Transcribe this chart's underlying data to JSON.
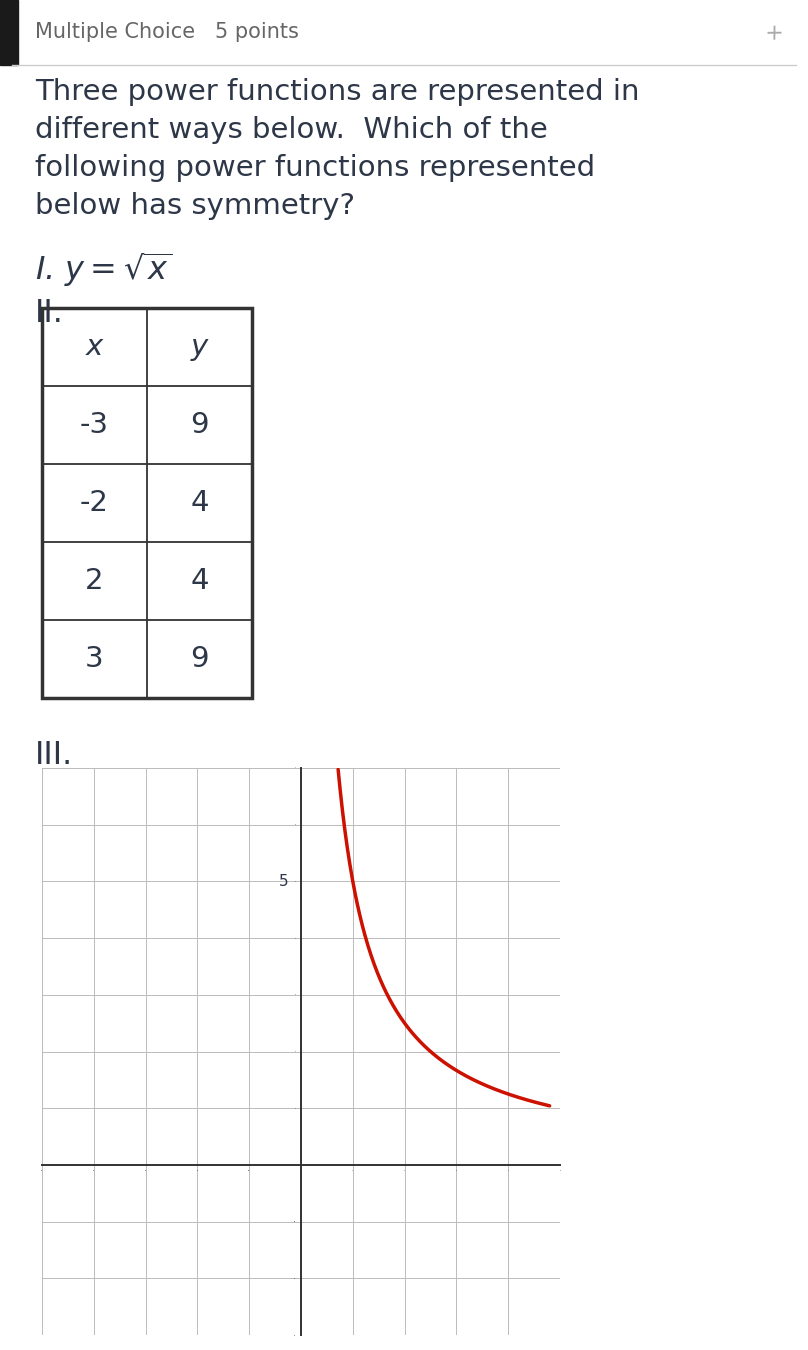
{
  "title_line1": "Multiple Choice   5 points",
  "question": "Three power functions are represented in\ndifferent ways below.  Which of the\nfollowing power functions represented\nbelow has symmetry?",
  "roman1": "I.",
  "formula1": "y = \\sqrt{x}",
  "roman2": "II.",
  "table_headers": [
    "x",
    "y"
  ],
  "table_data": [
    [
      "-3",
      "9"
    ],
    [
      "-2",
      "4"
    ],
    [
      "2",
      "4"
    ],
    [
      "3",
      "9"
    ]
  ],
  "roman3": "III.",
  "graph_label_5": "5",
  "bg_color": "#ffffff",
  "text_color": "#2d3748",
  "table_border_color": "#333333",
  "curve_color": "#cc1100",
  "grid_color": "#bbbbbb",
  "axis_color": "#333333",
  "header_bar_color": "#1a1a1a",
  "header_text_color": "#666666",
  "separator_color": "#cccccc"
}
